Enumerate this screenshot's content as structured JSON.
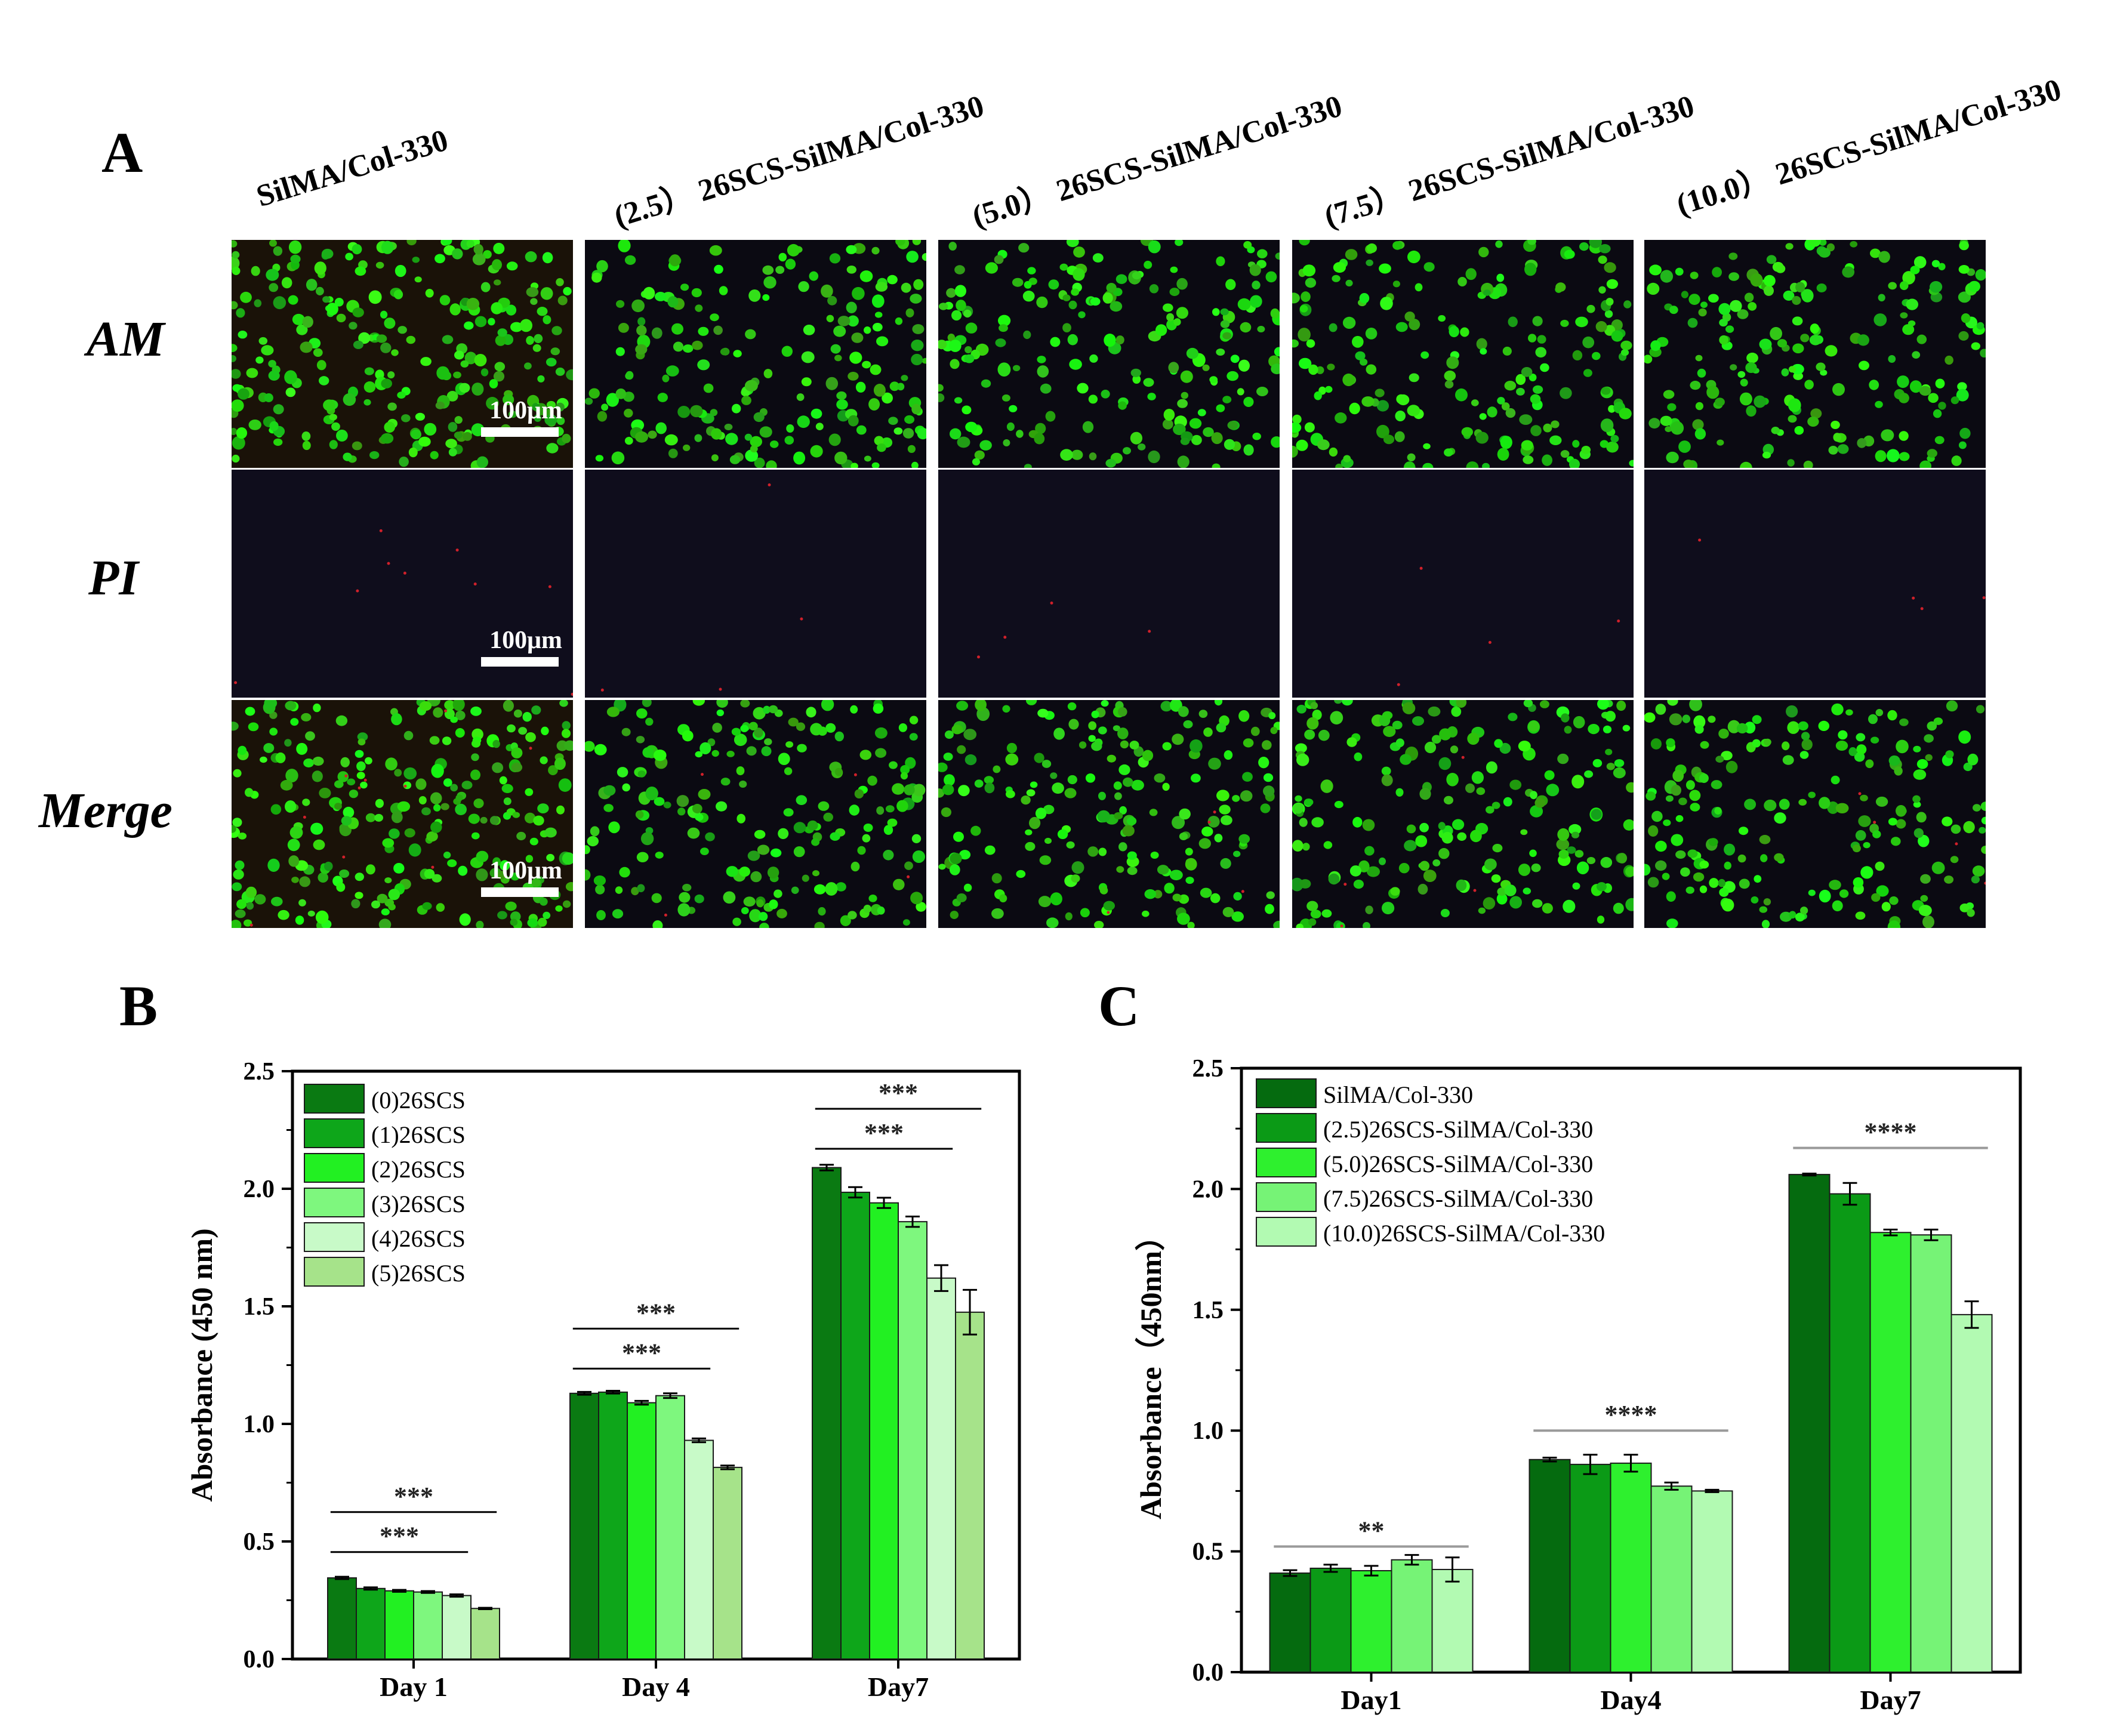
{
  "panel_a": {
    "letter": "A",
    "columns": [
      "SilMA/Col-330",
      "(2.5） 26SCS-SilMA/Col-330",
      "(5.0） 26SCS-SilMA/Col-330",
      "(7.5） 26SCS-SilMA/Col-330",
      "(10.0） 26SCS-SilMA/Col-330"
    ],
    "rows": [
      "AM",
      "PI",
      "Merge"
    ],
    "scale_bar": "100μm"
  },
  "chart_data": [
    {
      "panel": "B",
      "type": "bar",
      "ylabel": "Absorbance (450 nm)",
      "ylim": [
        0,
        2.5
      ],
      "yticks": [
        "0.0",
        "0.5",
        "1.0",
        "1.5",
        "2.0",
        "2.5"
      ],
      "categories": [
        "Day 1",
        "Day 4",
        "Day7"
      ],
      "legend_position": "top-left",
      "series": [
        {
          "name": "(0)26SCS",
          "color": "#0a7a12",
          "values": [
            0.345,
            1.13,
            2.09
          ],
          "errors": [
            0.005,
            0.006,
            0.012
          ]
        },
        {
          "name": "(1)26SCS",
          "color": "#0ea61a",
          "values": [
            0.3,
            1.135,
            1.985
          ],
          "errors": [
            0.005,
            0.006,
            0.022
          ]
        },
        {
          "name": "(2)26SCS",
          "color": "#22f022",
          "values": [
            0.29,
            1.09,
            1.94
          ],
          "errors": [
            0.004,
            0.008,
            0.022
          ]
        },
        {
          "name": "(3)26SCS",
          "color": "#7ef77e",
          "values": [
            0.285,
            1.12,
            1.86
          ],
          "errors": [
            0.004,
            0.01,
            0.022
          ]
        },
        {
          "name": "(4)26SCS",
          "color": "#c8fac8",
          "values": [
            0.27,
            0.93,
            1.62
          ],
          "errors": [
            0.005,
            0.008,
            0.055
          ]
        },
        {
          "name": "(5)26SCS",
          "color": "#a6e38a",
          "values": [
            0.215,
            0.815,
            1.475
          ],
          "errors": [
            0.003,
            0.008,
            0.095
          ]
        }
      ],
      "significance": [
        {
          "group": 0,
          "from": 0,
          "to": 4,
          "y": 0.455,
          "label": "***"
        },
        {
          "group": 0,
          "from": 0,
          "to": 5,
          "y": 0.625,
          "label": "***"
        },
        {
          "group": 1,
          "from": 0,
          "to": 4,
          "y": 1.235,
          "label": "***"
        },
        {
          "group": 1,
          "from": 0,
          "to": 5,
          "y": 1.405,
          "label": "***"
        },
        {
          "group": 2,
          "from": 0,
          "to": 4,
          "y": 2.17,
          "label": "***"
        },
        {
          "group": 2,
          "from": 0,
          "to": 5,
          "y": 2.34,
          "label": "***"
        }
      ]
    },
    {
      "panel": "C",
      "type": "bar",
      "ylabel": "Absorbance（450nm）",
      "ylim": [
        0,
        2.5
      ],
      "yticks": [
        "0.0",
        "0.5",
        "1.0",
        "1.5",
        "2.0",
        "2.5"
      ],
      "categories": [
        "Day1",
        "Day4",
        "Day7"
      ],
      "legend_position": "top-left",
      "series": [
        {
          "name": "SilMA/Col-330",
          "color": "#056b0f",
          "values": [
            0.41,
            0.88,
            2.06
          ],
          "errors": [
            0.012,
            0.008,
            0.004
          ]
        },
        {
          "name": "(2.5)26SCS-SilMA/Col-330",
          "color": "#0b9a16",
          "values": [
            0.43,
            0.86,
            1.98
          ],
          "errors": [
            0.015,
            0.04,
            0.045
          ]
        },
        {
          "name": "(5.0)26SCS-SilMA/Col-330",
          "color": "#2ef02e",
          "values": [
            0.42,
            0.865,
            1.82
          ],
          "errors": [
            0.02,
            0.035,
            0.012
          ]
        },
        {
          "name": "(7.5)26SCS-SilMA/Col-330",
          "color": "#76f376",
          "values": [
            0.465,
            0.77,
            1.81
          ],
          "errors": [
            0.02,
            0.015,
            0.022
          ]
        },
        {
          "name": "(10.0)26SCS-SilMA/Col-330",
          "color": "#b2fab2",
          "values": [
            0.425,
            0.75,
            1.48
          ],
          "errors": [
            0.05,
            0.005,
            0.055
          ]
        }
      ],
      "significance": [
        {
          "group": 0,
          "from": 0,
          "to": 4,
          "y": 0.52,
          "label": "**"
        },
        {
          "group": 1,
          "from": 0,
          "to": 4,
          "y": 1.0,
          "label": "****"
        },
        {
          "group": 2,
          "from": 0,
          "to": 4,
          "y": 2.17,
          "label": "****"
        }
      ]
    }
  ]
}
